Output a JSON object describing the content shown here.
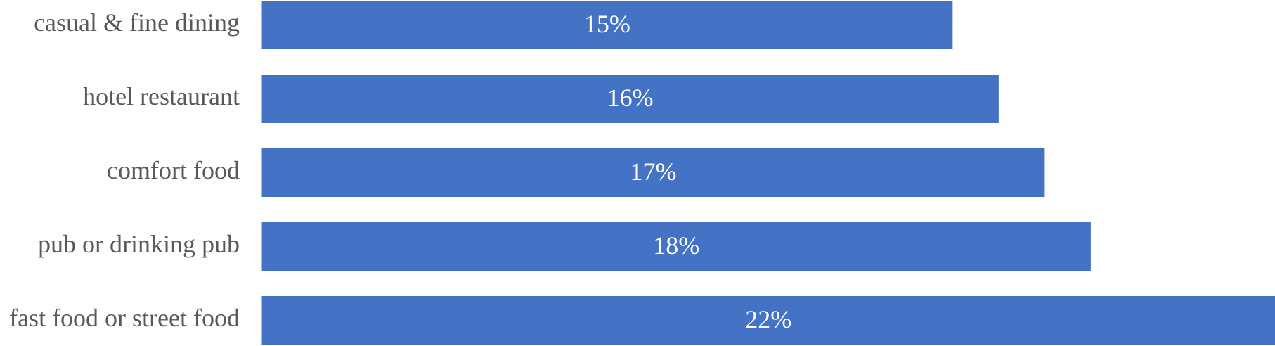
{
  "chart_data": {
    "type": "barh",
    "categories": [
      "casual & fine dining",
      "hotel restaurant",
      "comfort food",
      "pub or drinking pub",
      "fast food or street food"
    ],
    "values": [
      15,
      16,
      17,
      18,
      22
    ],
    "value_labels": [
      "15%",
      "16%",
      "17%",
      "18%",
      "22%"
    ],
    "color": "#4472c4"
  }
}
